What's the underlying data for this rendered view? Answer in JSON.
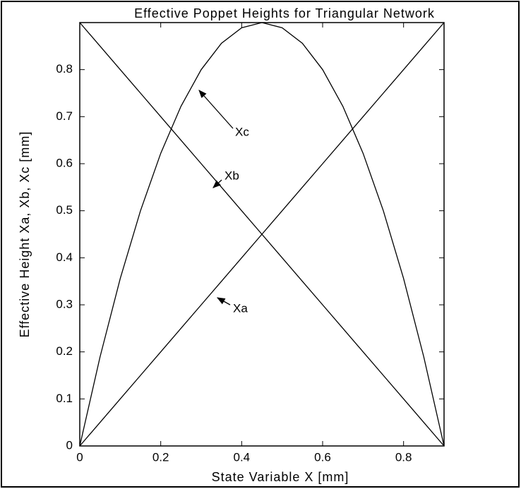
{
  "chart_data": {
    "type": "line",
    "title": "Effective Poppet Heights for Triangular Network",
    "x_label": "State Variable X  [mm]",
    "y_label": "Effective Height  Xa, Xb, Xc  [mm]",
    "x": [
      0,
      0.05,
      0.1,
      0.15,
      0.2,
      0.25,
      0.3,
      0.35,
      0.4,
      0.45,
      0.5,
      0.55,
      0.6,
      0.65,
      0.7,
      0.75,
      0.8,
      0.85,
      0.9
    ],
    "series": [
      {
        "name": "Xa",
        "color": "#000000",
        "values": [
          0,
          0.05,
          0.1,
          0.15,
          0.2,
          0.25,
          0.3,
          0.35,
          0.4,
          0.45,
          0.5,
          0.55,
          0.6,
          0.65,
          0.7,
          0.75,
          0.8,
          0.85,
          0.9
        ]
      },
      {
        "name": "Xb",
        "color": "#000000",
        "values": [
          0.9,
          0.85,
          0.8,
          0.75,
          0.7,
          0.65,
          0.6,
          0.55,
          0.5,
          0.45,
          0.4,
          0.35,
          0.3,
          0.25,
          0.2,
          0.15,
          0.1,
          0.05,
          0
        ]
      },
      {
        "name": "Xc",
        "color": "#000000",
        "values": [
          0,
          0.189,
          0.356,
          0.5,
          0.622,
          0.722,
          0.8,
          0.856,
          0.889,
          0.9,
          0.889,
          0.856,
          0.8,
          0.722,
          0.622,
          0.5,
          0.356,
          0.189,
          0
        ]
      }
    ],
    "xlim": [
      0,
      0.9
    ],
    "ylim": [
      0,
      0.9
    ],
    "xticks": [
      0,
      0.2,
      0.4,
      0.6,
      0.8
    ],
    "yticks": [
      0,
      0.1,
      0.2,
      0.3,
      0.4,
      0.5,
      0.6,
      0.7,
      0.8
    ]
  }
}
